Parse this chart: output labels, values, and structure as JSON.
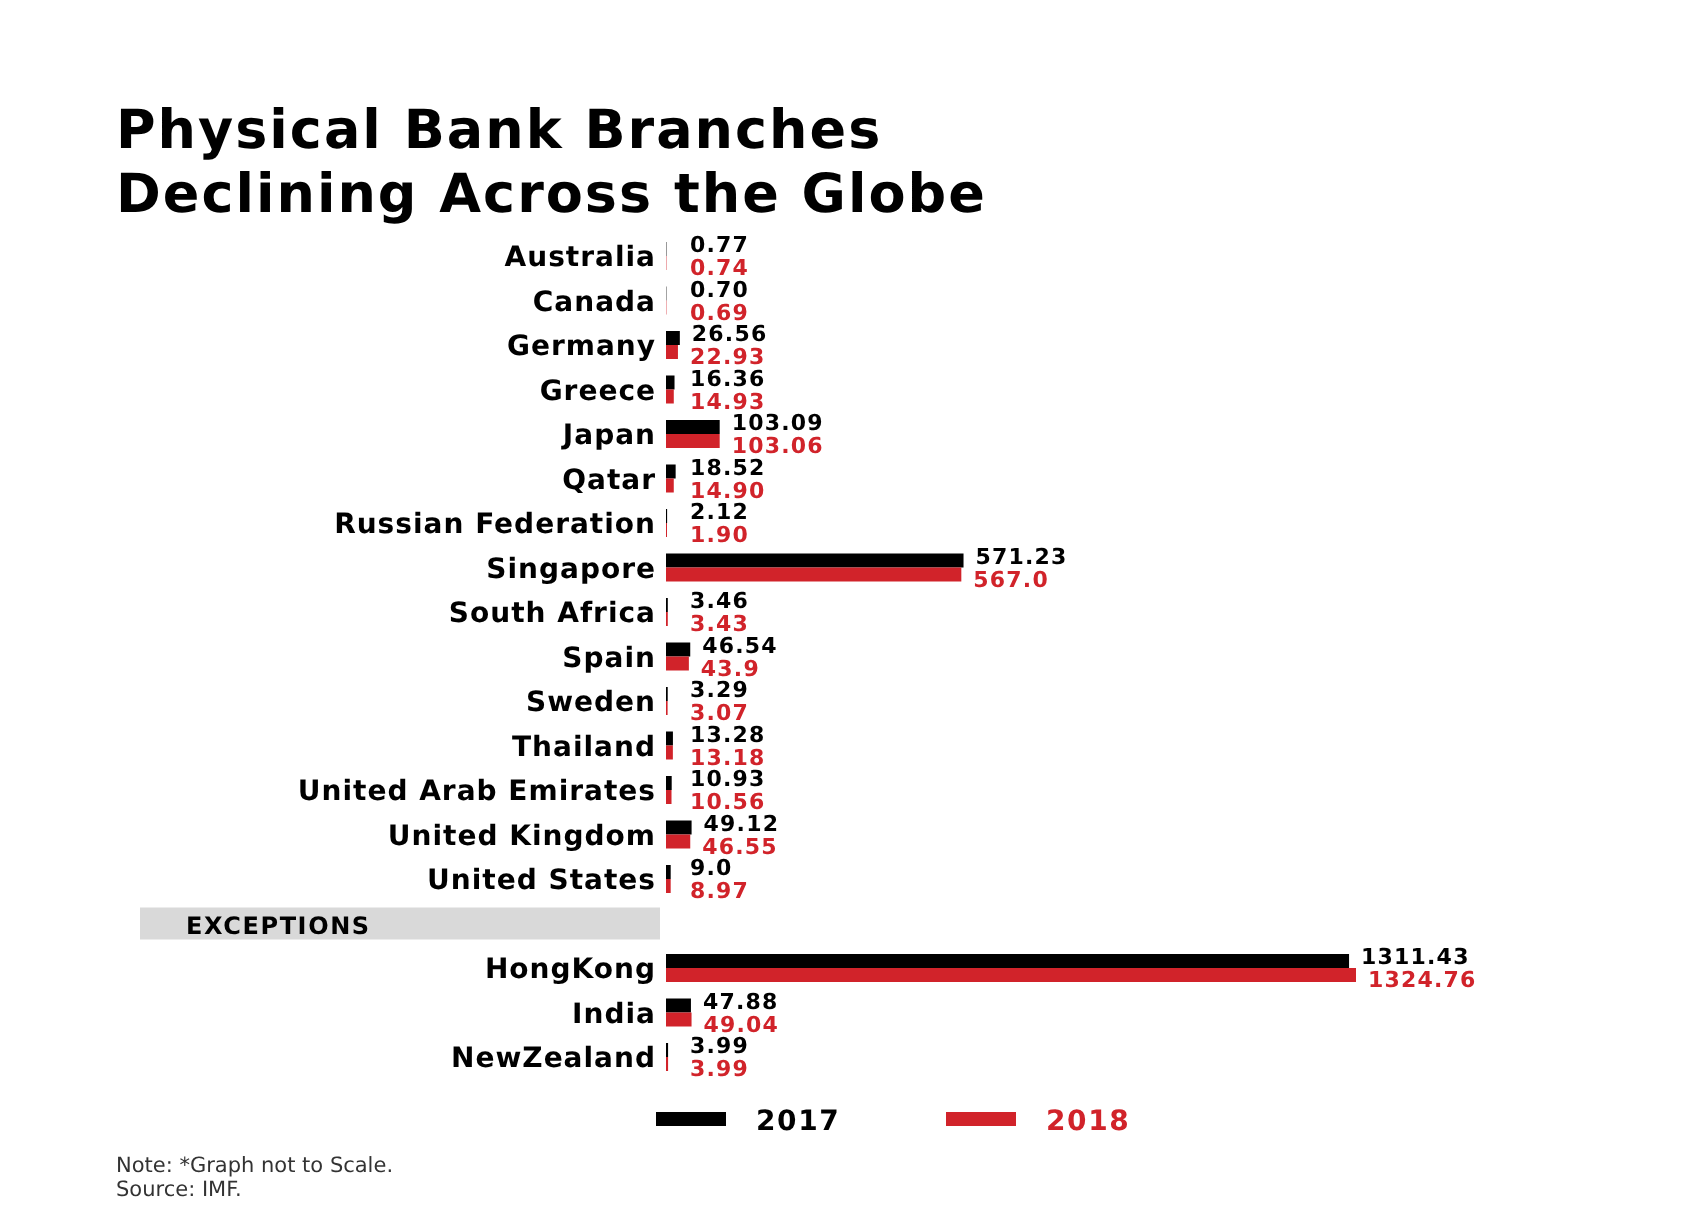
{
  "chart_data": {
    "type": "bar",
    "orientation": "horizontal",
    "title": "Physical Bank Branches Declining Across the Globe",
    "categories": [
      "Australia",
      "Canada",
      "Germany",
      "Greece",
      "Japan",
      "Qatar",
      "Russian Federation",
      "Singapore",
      "South Africa",
      "Spain",
      "Sweden",
      "Thailand",
      "United Arab Emirates",
      "United Kingdom",
      "United States",
      null,
      "HongKong",
      "India",
      "NewZealand"
    ],
    "series": [
      {
        "name": "2017",
        "color": "#000000",
        "values": [
          0.77,
          0.7,
          26.56,
          16.36,
          103.09,
          18.52,
          2.12,
          571.23,
          3.46,
          46.54,
          3.29,
          13.28,
          10.93,
          49.12,
          9.0,
          null,
          1311.43,
          47.88,
          3.99
        ],
        "value_labels": [
          "0.77",
          "0.70",
          "26.56",
          "16.36",
          "103.09",
          "18.52",
          "2.12",
          "571.23",
          "3.46",
          "46.54",
          "3.29",
          "13.28",
          "10.93",
          "49.12",
          "9.0",
          null,
          "1311.43",
          "47.88",
          "3.99"
        ]
      },
      {
        "name": "2018",
        "color": "#d1232a",
        "values": [
          0.74,
          0.69,
          22.93,
          14.93,
          103.06,
          14.9,
          1.9,
          567.0,
          3.43,
          43.9,
          3.07,
          13.18,
          10.56,
          46.55,
          8.97,
          null,
          1324.76,
          49.04,
          3.99
        ],
        "value_labels": [
          "0.74",
          "0.69",
          "22.93",
          "14.93",
          "103.06",
          "14.90",
          "1.90",
          "567.0",
          "3.43",
          "43.9",
          "3.07",
          "13.18",
          "10.56",
          "46.55",
          "8.97",
          null,
          "1324.76",
          "49.04",
          "3.99"
        ]
      }
    ],
    "legend": "bottom",
    "annotations": [
      "EXCEPTIONS",
      "Note: *Graph not to Scale.",
      "Source: IMF."
    ]
  }
}
